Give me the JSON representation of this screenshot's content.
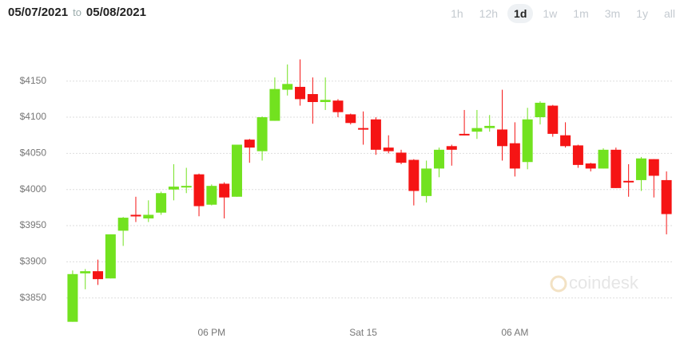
{
  "header": {
    "from": "05/07/2021",
    "sep": "to",
    "to": "05/08/2021"
  },
  "ranges": [
    "1h",
    "12h",
    "1d",
    "1w",
    "1m",
    "3m",
    "1y",
    "all"
  ],
  "selected_range": "1d",
  "chart_data": {
    "type": "candlestick",
    "watermark": "coindesk",
    "categories": [
      null,
      null,
      null,
      null,
      null,
      null,
      null,
      null,
      null,
      null,
      null,
      "06 PM",
      null,
      null,
      null,
      null,
      null,
      null,
      null,
      null,
      null,
      null,
      null,
      "Sat 15",
      null,
      null,
      null,
      null,
      null,
      null,
      null,
      null,
      null,
      null,
      null,
      "06 AM",
      null,
      null,
      null,
      null,
      null,
      null,
      null,
      null,
      null,
      null,
      null,
      null
    ],
    "open": [
      3817,
      3884,
      3887,
      3877,
      3943,
      3965,
      3960,
      3968,
      4000,
      4003,
      4021,
      3979,
      4008,
      3990,
      4069,
      4053,
      4095,
      4138,
      4142,
      4132,
      4121,
      4123,
      4104,
      4085,
      4097,
      4058,
      4051,
      4041,
      3991,
      4029,
      4060,
      4077,
      4080,
      4085,
      4083,
      4064,
      4038,
      4100,
      4116,
      4075,
      4061,
      4036,
      4029,
      4055,
      4012,
      4013,
      4042,
      4013
    ],
    "high": [
      3888,
      3890,
      3903,
      3938,
      3962,
      3990,
      3985,
      3997,
      4035,
      4030,
      4022,
      4007,
      4010,
      4062,
      4070,
      4101,
      4155,
      4173,
      4180,
      4155,
      4155,
      4125,
      4105,
      4108,
      4100,
      4075,
      4055,
      4042,
      4040,
      4058,
      4062,
      4110,
      4110,
      4103,
      4138,
      4093,
      4113,
      4122,
      4117,
      4093,
      4062,
      4037,
      4057,
      4058,
      4035,
      4045,
      4042,
      4025
    ],
    "low": [
      3817,
      3862,
      3868,
      3877,
      3922,
      3955,
      3955,
      3965,
      3985,
      3995,
      3963,
      3978,
      3960,
      3990,
      4037,
      4040,
      4095,
      4130,
      4116,
      4091,
      4110,
      4100,
      4090,
      4062,
      4048,
      4050,
      4035,
      3978,
      3982,
      4017,
      4033,
      4075,
      4070,
      4080,
      4040,
      4018,
      4028,
      4090,
      4073,
      4058,
      4030,
      4025,
      4029,
      4002,
      3990,
      3998,
      3989,
      3938
    ],
    "close": [
      3883,
      3887,
      3876,
      3938,
      3961,
      3963,
      3965,
      3995,
      4004,
      4005,
      3977,
      4005,
      3989,
      4062,
      4058,
      4100,
      4139,
      4146,
      4125,
      4121,
      4124,
      4107,
      4092,
      4083,
      4055,
      4053,
      4037,
      3998,
      4029,
      4055,
      4055,
      4075,
      4085,
      4088,
      4060,
      4029,
      4097,
      4120,
      4077,
      4060,
      4034,
      4029,
      4055,
      4002,
      4010,
      4043,
      4019,
      3966
    ],
    "up_color": "#72e21f",
    "down_color": "#f51414",
    "ylim": [
      3810,
      4207
    ],
    "yticks": [
      {
        "value": 3850,
        "label": "$3850"
      },
      {
        "value": 3900,
        "label": "$3900"
      },
      {
        "value": 3950,
        "label": "$3950"
      },
      {
        "value": 4000,
        "label": "$4000"
      },
      {
        "value": 4050,
        "label": "$4050"
      },
      {
        "value": 4100,
        "label": "$4100"
      },
      {
        "value": 4150,
        "label": "$4150"
      }
    ],
    "grid": true
  }
}
